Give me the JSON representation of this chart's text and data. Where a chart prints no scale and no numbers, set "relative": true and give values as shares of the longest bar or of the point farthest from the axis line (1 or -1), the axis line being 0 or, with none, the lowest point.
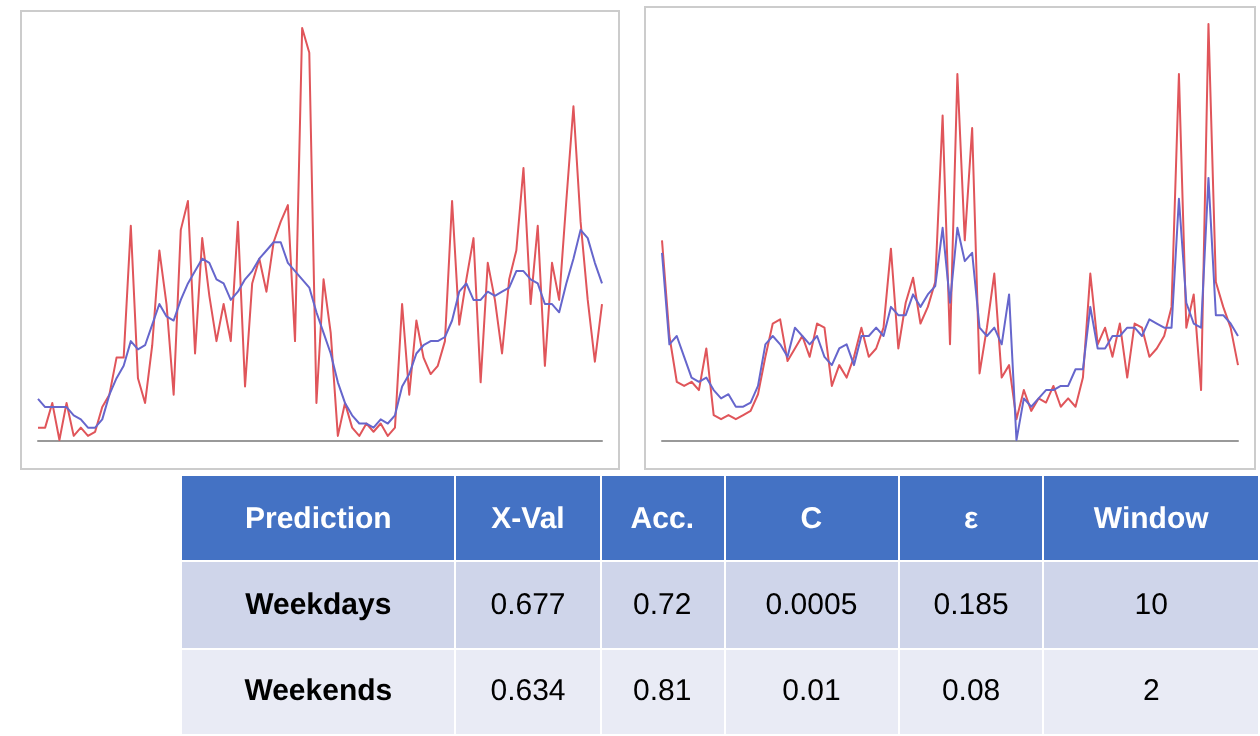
{
  "chart_data": [
    {
      "type": "line",
      "relative": true,
      "categories": [
        null,
        null,
        null,
        null,
        null,
        null,
        null,
        null,
        null,
        null,
        null,
        null,
        null,
        null,
        null,
        null,
        null,
        null,
        null,
        null,
        null,
        null,
        null,
        null,
        null,
        null,
        null,
        null,
        null,
        null,
        null,
        null,
        null,
        null,
        null,
        null,
        null,
        null,
        null,
        null,
        null,
        null,
        null,
        null,
        null,
        null,
        null,
        null,
        null,
        null,
        null,
        null,
        null,
        null,
        null,
        null,
        null,
        null,
        null,
        null,
        null,
        null,
        null,
        null,
        null,
        null,
        null,
        null,
        null,
        null,
        null,
        null,
        null,
        null,
        null,
        null,
        null,
        null,
        null,
        null
      ],
      "series": [
        {
          "color": "#e0555a",
          "values": [
            0.03,
            0.03,
            0.09,
            0,
            0.09,
            0.01,
            0.03,
            0.01,
            0.02,
            0.08,
            0.11,
            0.2,
            0.2,
            0.52,
            0.15,
            0.09,
            0.23,
            0.46,
            0.33,
            0.11,
            0.51,
            0.58,
            0.21,
            0.49,
            0.35,
            0.24,
            0.33,
            0.24,
            0.53,
            0.13,
            0.38,
            0.44,
            0.36,
            0.48,
            0.53,
            0.57,
            0.24,
            1,
            0.94,
            0.09,
            0.39,
            0.26,
            0.01,
            0.09,
            0.03,
            0.01,
            0.04,
            0.02,
            0.04,
            0.01,
            0.03,
            0.33,
            0.11,
            0.29,
            0.2,
            0.16,
            0.18,
            0.24,
            0.58,
            0.28,
            0.39,
            0.49,
            0.14,
            0.43,
            0.34,
            0.21,
            0.39,
            0.46,
            0.66,
            0.33,
            0.52,
            0.18,
            0.43,
            0.34,
            0.58,
            0.81,
            0.53,
            0.34,
            0.19,
            0.33
          ]
        },
        {
          "color": "#6666cc",
          "values": [
            0.1,
            0.08,
            0.08,
            0.08,
            0.08,
            0.06,
            0.05,
            0.03,
            0.03,
            0.05,
            0.11,
            0.15,
            0.18,
            0.24,
            0.22,
            0.23,
            0.28,
            0.33,
            0.3,
            0.29,
            0.34,
            0.38,
            0.41,
            0.44,
            0.43,
            0.39,
            0.38,
            0.34,
            0.36,
            0.39,
            0.41,
            0.44,
            0.46,
            0.48,
            0.48,
            0.43,
            0.41,
            0.39,
            0.37,
            0.31,
            0.26,
            0.21,
            0.14,
            0.09,
            0.06,
            0.04,
            0.04,
            0.03,
            0.05,
            0.04,
            0.06,
            0.13,
            0.16,
            0.21,
            0.23,
            0.24,
            0.24,
            0.25,
            0.29,
            0.36,
            0.38,
            0.34,
            0.34,
            0.36,
            0.35,
            0.36,
            0.37,
            0.41,
            0.41,
            0.39,
            0.38,
            0.33,
            0.33,
            0.31,
            0.38,
            0.44,
            0.51,
            0.49,
            0.43,
            0.38
          ]
        }
      ]
    },
    {
      "type": "line",
      "relative": true,
      "categories": [
        null,
        null,
        null,
        null,
        null,
        null,
        null,
        null,
        null,
        null,
        null,
        null,
        null,
        null,
        null,
        null,
        null,
        null,
        null,
        null,
        null,
        null,
        null,
        null,
        null,
        null,
        null,
        null,
        null,
        null,
        null,
        null,
        null,
        null,
        null,
        null,
        null,
        null,
        null,
        null,
        null,
        null,
        null,
        null,
        null,
        null,
        null,
        null,
        null,
        null,
        null,
        null,
        null,
        null,
        null,
        null,
        null,
        null,
        null,
        null,
        null,
        null,
        null,
        null,
        null,
        null,
        null,
        null,
        null,
        null,
        null,
        null,
        null,
        null,
        null,
        null,
        null,
        null,
        null
      ],
      "series": [
        {
          "color": "#e0555a",
          "values": [
            0.48,
            0.25,
            0.14,
            0.13,
            0.14,
            0.12,
            0.22,
            0.06,
            0.05,
            0.06,
            0.05,
            0.06,
            0.07,
            0.11,
            0.2,
            0.28,
            0.29,
            0.19,
            0.22,
            0.25,
            0.2,
            0.28,
            0.27,
            0.13,
            0.18,
            0.15,
            0.2,
            0.27,
            0.2,
            0.22,
            0.27,
            0.46,
            0.22,
            0.33,
            0.39,
            0.28,
            0.32,
            0.38,
            0.78,
            0.23,
            0.88,
            0.48,
            0.75,
            0.16,
            0.27,
            0.4,
            0.15,
            0.18,
            0.05,
            0.12,
            0.07,
            0.1,
            0.09,
            0.13,
            0.08,
            0.1,
            0.08,
            0.15,
            0.4,
            0.23,
            0.27,
            0.2,
            0.28,
            0.15,
            0.28,
            0.27,
            0.2,
            0.22,
            0.25,
            0.32,
            0.88,
            0.27,
            0.35,
            0.12,
            1,
            0.38,
            0.32,
            0.27,
            0.18
          ]
        },
        {
          "color": "#6666cc",
          "values": [
            0.45,
            0.23,
            0.25,
            0.2,
            0.15,
            0.14,
            0.15,
            0.12,
            0.1,
            0.11,
            0.08,
            0.08,
            0.09,
            0.13,
            0.23,
            0.25,
            0.23,
            0.2,
            0.27,
            0.25,
            0.23,
            0.25,
            0.2,
            0.18,
            0.22,
            0.23,
            0.18,
            0.25,
            0.25,
            0.27,
            0.25,
            0.32,
            0.3,
            0.3,
            0.35,
            0.32,
            0.35,
            0.37,
            0.51,
            0.33,
            0.51,
            0.43,
            0.45,
            0.27,
            0.25,
            0.27,
            0.23,
            0.35,
            0,
            0.1,
            0.08,
            0.1,
            0.12,
            0.12,
            0.13,
            0.13,
            0.17,
            0.17,
            0.32,
            0.22,
            0.22,
            0.25,
            0.25,
            0.27,
            0.27,
            0.25,
            0.29,
            0.28,
            0.27,
            0.27,
            0.58,
            0.33,
            0.28,
            0.27,
            0.63,
            0.3,
            0.3,
            0.28,
            0.25
          ]
        }
      ]
    },
    {
      "type": "other",
      "categories": [
        "Prediction",
        "X-Val",
        "Acc.",
        "C",
        "ε",
        "Window"
      ],
      "cell_labels": [
        [
          "Weekdays",
          "0.677",
          "0.72",
          "0.0005",
          "0.185",
          "10"
        ],
        [
          "Weekends",
          "0.634",
          "0.81",
          "0.01",
          "0.08",
          "2"
        ]
      ]
    }
  ]
}
